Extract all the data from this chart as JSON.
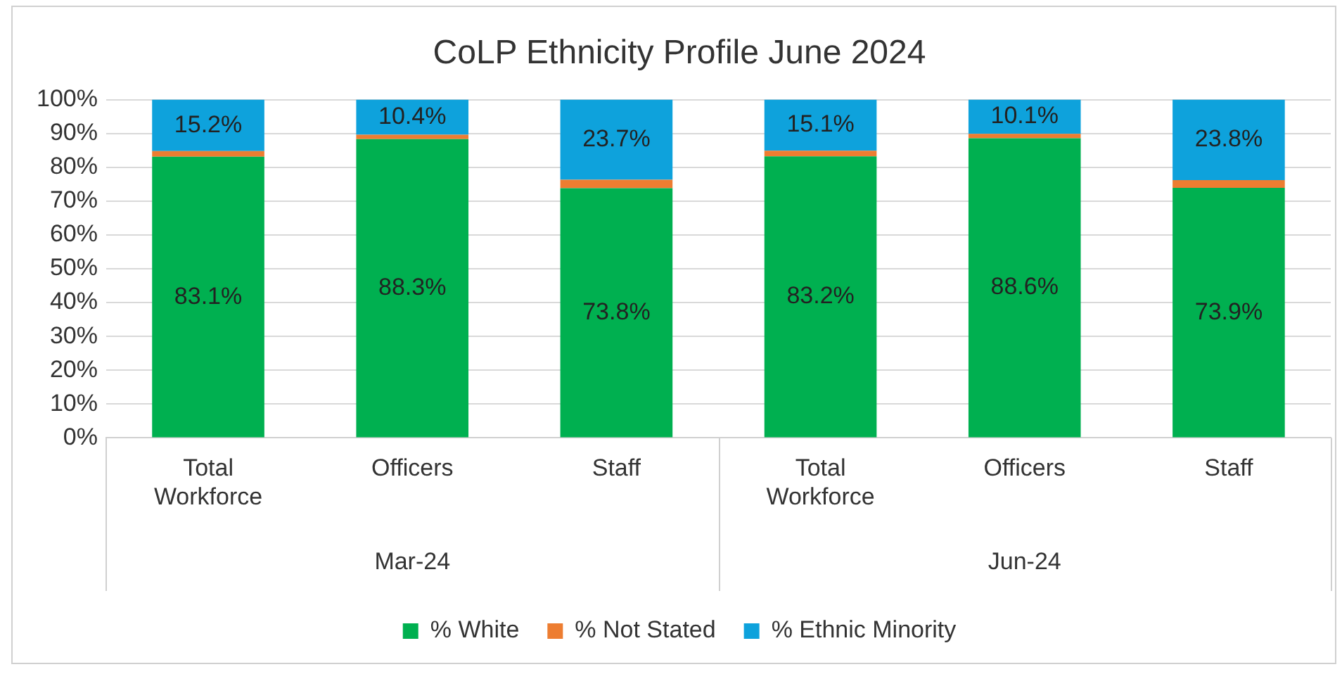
{
  "chart_data": {
    "type": "bar",
    "title": "CoLP Ethnicity Profile June 2024",
    "stacked": true,
    "categories": [
      "Total Workforce",
      "Officers",
      "Staff",
      "Total Workforce",
      "Officers",
      "Staff"
    ],
    "annotations": [
      "Mar-24",
      "Jun-24"
    ],
    "series": [
      {
        "name": "% White",
        "color": "#00b050",
        "values": [
          83.1,
          88.3,
          73.8,
          83.2,
          88.6,
          73.9
        ],
        "value_labels": [
          "83.1%",
          "88.3%",
          "73.8%",
          "83.2%",
          "88.6%",
          "73.9%"
        ]
      },
      {
        "name": "% Not Stated",
        "color": "#ed7d31",
        "values": [
          1.7,
          1.3,
          2.5,
          1.7,
          1.3,
          2.3
        ]
      },
      {
        "name": "% Ethnic Minority",
        "color": "#0ea2dc",
        "values": [
          15.2,
          10.4,
          23.7,
          15.1,
          10.1,
          23.8
        ],
        "value_labels": [
          "15.2%",
          "10.4%",
          "23.7%",
          "15.1%",
          "10.1%",
          "23.8%"
        ]
      }
    ],
    "ylim": [
      0,
      100
    ],
    "yticks": [
      {
        "value": 0,
        "label": "0%"
      },
      {
        "value": 10,
        "label": "10%"
      },
      {
        "value": 20,
        "label": "20%"
      },
      {
        "value": 30,
        "label": "30%"
      },
      {
        "value": 40,
        "label": "40%"
      },
      {
        "value": 50,
        "label": "50%"
      },
      {
        "value": 60,
        "label": "60%"
      },
      {
        "value": 70,
        "label": "70%"
      },
      {
        "value": 80,
        "label": "80%"
      },
      {
        "value": 90,
        "label": "90%"
      },
      {
        "value": 100,
        "label": "100%"
      }
    ],
    "grid": "y",
    "legend": "bottom",
    "marker": "square"
  }
}
